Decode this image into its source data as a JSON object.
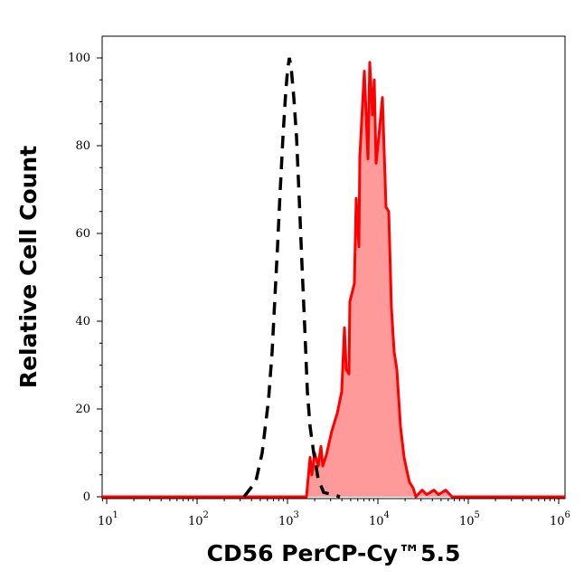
{
  "chart_data": {
    "type": "area",
    "title": "",
    "xlabel": "CD56 PerCP-Cy™5.5",
    "ylabel": "Relative Cell Count",
    "x_scale": "log",
    "xlim": [
      8.7,
      11700000
    ],
    "ylim": [
      0,
      105
    ],
    "x_ticks": [
      {
        "base": "10",
        "exp": "1",
        "value": 10
      },
      {
        "base": "10",
        "exp": "2",
        "value": 100
      },
      {
        "base": "10",
        "exp": "3",
        "value": 1000
      },
      {
        "base": "10",
        "exp": "4",
        "value": 10000
      },
      {
        "base": "10",
        "exp": "5",
        "value": 100000
      },
      {
        "base": "10",
        "exp": "6",
        "value": 1000000
      }
    ],
    "y_ticks": [
      "0",
      "20",
      "40",
      "60",
      "80",
      "100"
    ],
    "grid": false,
    "legend": "none",
    "series": [
      {
        "style": "dashed",
        "color": "#000000",
        "log10_x": [
          2.52,
          2.65,
          2.72,
          2.79,
          2.83,
          2.86,
          2.89,
          2.92,
          2.95,
          2.98,
          3.0,
          3.02,
          3.04,
          3.07,
          3.1,
          3.13,
          3.16,
          3.19,
          3.22,
          3.25,
          3.29,
          3.34,
          3.4,
          3.58
        ],
        "y": [
          0,
          3.5,
          10,
          22,
          33,
          45,
          57,
          70,
          82,
          92,
          97,
          100,
          98,
          91,
          82,
          68,
          53,
          39,
          24,
          16,
          10,
          4,
          1,
          0
        ]
      },
      {
        "style": "filled",
        "color": "#ff0000",
        "fill": "#ff9a9a",
        "log10_x": [
          0.94,
          3.21,
          3.25,
          3.27,
          3.3,
          3.34,
          3.37,
          3.39,
          3.43,
          3.49,
          3.52,
          3.55,
          3.6,
          3.63,
          3.65,
          3.68,
          3.69,
          3.74,
          3.76,
          3.79,
          3.8,
          3.85,
          3.89,
          3.91,
          3.94,
          3.96,
          3.98,
          4.01,
          4.05,
          4.09,
          4.12,
          4.15,
          4.18,
          4.21,
          4.25,
          4.29,
          4.32,
          4.35,
          4.39,
          4.42,
          4.49,
          4.54,
          4.62,
          4.67,
          4.75,
          4.82,
          6.07
        ],
        "y": [
          0,
          0,
          9,
          5,
          10,
          7,
          11.5,
          7,
          9.5,
          15,
          17,
          19,
          24,
          38.5,
          29,
          28,
          44.5,
          48.6,
          68,
          57,
          77.5,
          97,
          77,
          99,
          87,
          95,
          76,
          82,
          91,
          66,
          65,
          43,
          33,
          29,
          16,
          9,
          6,
          3.3,
          2,
          0,
          1.5,
          0.5,
          1.5,
          0.5,
          1.5,
          0,
          0
        ]
      }
    ]
  }
}
